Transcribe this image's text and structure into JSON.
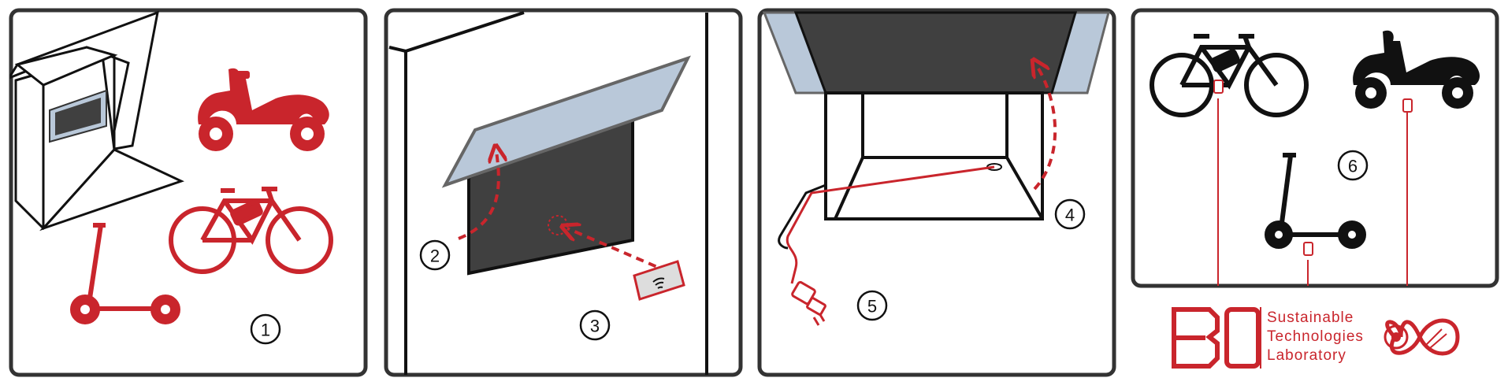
{
  "steps": [
    "1",
    "2",
    "3",
    "4",
    "5",
    "6"
  ],
  "brand": {
    "line1": "Sustainable",
    "line2": "Technologies",
    "line3": "Laboratory"
  },
  "colors": {
    "accent": "#c9252c",
    "dark_fill": "#404040",
    "light_blue": "#b9c8d9",
    "border": "#333333"
  },
  "icons": [
    "locker-station-icon",
    "scooter-icon",
    "bicycle-icon",
    "kick-scooter-icon",
    "rfid-card-icon",
    "charging-plug-icon",
    "btd-logo-icon",
    "infinity-plug-icon"
  ]
}
